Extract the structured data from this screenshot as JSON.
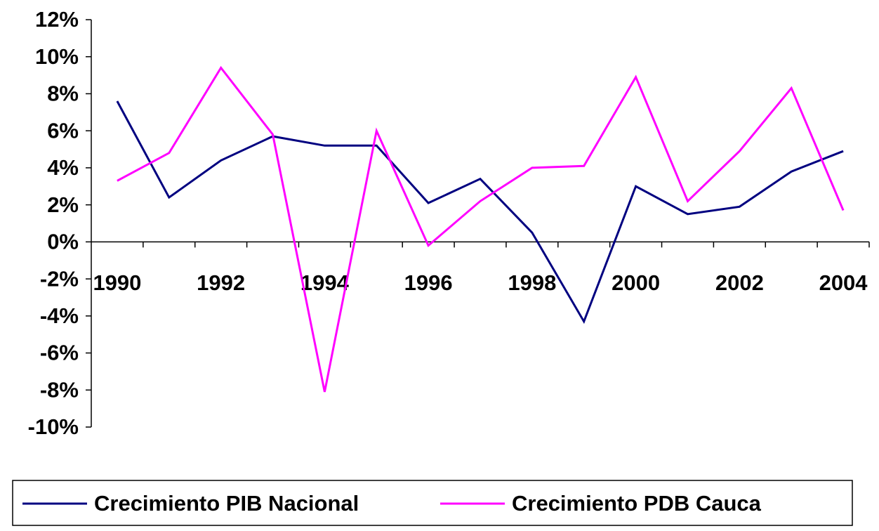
{
  "chart_data": {
    "type": "line",
    "categories": [
      "1990",
      null,
      "1992",
      null,
      "1994",
      null,
      "1996",
      null,
      "1998",
      null,
      "2000",
      null,
      "2002",
      null,
      "2004"
    ],
    "series": [
      {
        "name": "Crecimiento PIB Nacional",
        "color": "#000080",
        "values": [
          7.6,
          2.4,
          4.4,
          5.7,
          5.2,
          5.2,
          2.1,
          3.4,
          0.5,
          -4.3,
          3.0,
          1.5,
          1.9,
          3.8,
          4.9
        ]
      },
      {
        "name": "Crecimiento PDB Cauca",
        "color": "#ff00ff",
        "values": [
          3.3,
          4.8,
          9.4,
          5.8,
          -8.1,
          6.0,
          -0.2,
          2.2,
          4.0,
          4.1,
          8.9,
          2.2,
          4.9,
          8.3,
          1.7
        ]
      }
    ],
    "ylim": [
      -10,
      12
    ],
    "yticks": [
      {
        "value": -10,
        "label": "-10%"
      },
      {
        "value": -8,
        "label": "-8%"
      },
      {
        "value": -6,
        "label": "-6%"
      },
      {
        "value": -4,
        "label": "-4%"
      },
      {
        "value": -2,
        "label": "-2%"
      },
      {
        "value": 0,
        "label": "0%"
      },
      {
        "value": 2,
        "label": "2%"
      },
      {
        "value": 4,
        "label": "4%"
      },
      {
        "value": 6,
        "label": "6%"
      },
      {
        "value": 8,
        "label": "8%"
      },
      {
        "value": 10,
        "label": "10%"
      },
      {
        "value": 12,
        "label": "12%"
      }
    ],
    "legend": "bottom"
  }
}
